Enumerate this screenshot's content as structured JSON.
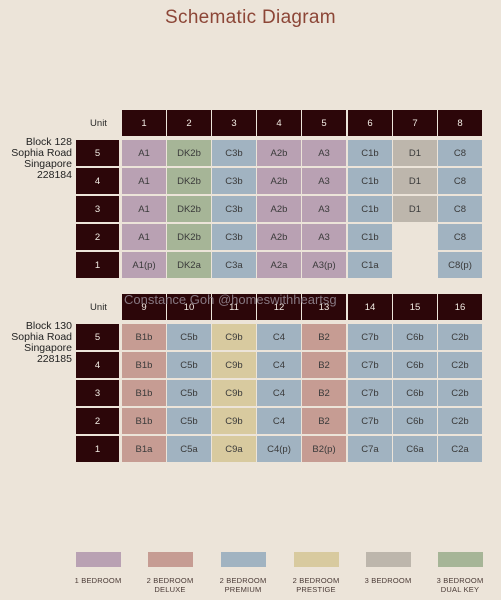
{
  "title": "Schematic Diagram",
  "watermark": "Constance Goh @homeswithheartsg",
  "colors": {
    "1 BEDROOM": "#b9a1b3",
    "2 BEDROOM DELUXE": "#c69c93",
    "2 BEDROOM PREMIUM": "#a1b3c1",
    "2 BEDROOM PRESTIGE": "#d8ca9f",
    "3 BEDROOM": "#bdb6ac",
    "3 BEDROOM DUAL KEY": "#a6b597"
  },
  "blocks": [
    {
      "name": "Block 128\nSophia Road\nSingapore\n228184",
      "unit_header": "Unit",
      "units": [
        "1",
        "2",
        "3",
        "4",
        "5",
        "6",
        "7",
        "8"
      ],
      "floors": [
        {
          "level": "5",
          "cells": [
            [
              "A1",
              "1 BEDROOM"
            ],
            [
              "DK2b",
              "3 BEDROOM DUAL KEY"
            ],
            [
              "C3b",
              "2 BEDROOM PREMIUM"
            ],
            [
              "A2b",
              "1 BEDROOM"
            ],
            [
              "A3",
              "1 BEDROOM"
            ],
            [
              "C1b",
              "2 BEDROOM PREMIUM"
            ],
            [
              "D1",
              "3 BEDROOM"
            ],
            [
              "C8",
              "2 BEDROOM PREMIUM"
            ]
          ]
        },
        {
          "level": "4",
          "cells": [
            [
              "A1",
              "1 BEDROOM"
            ],
            [
              "DK2b",
              "3 BEDROOM DUAL KEY"
            ],
            [
              "C3b",
              "2 BEDROOM PREMIUM"
            ],
            [
              "A2b",
              "1 BEDROOM"
            ],
            [
              "A3",
              "1 BEDROOM"
            ],
            [
              "C1b",
              "2 BEDROOM PREMIUM"
            ],
            [
              "D1",
              "3 BEDROOM"
            ],
            [
              "C8",
              "2 BEDROOM PREMIUM"
            ]
          ]
        },
        {
          "level": "3",
          "cells": [
            [
              "A1",
              "1 BEDROOM"
            ],
            [
              "DK2b",
              "3 BEDROOM DUAL KEY"
            ],
            [
              "C3b",
              "2 BEDROOM PREMIUM"
            ],
            [
              "A2b",
              "1 BEDROOM"
            ],
            [
              "A3",
              "1 BEDROOM"
            ],
            [
              "C1b",
              "2 BEDROOM PREMIUM"
            ],
            [
              "D1",
              "3 BEDROOM"
            ],
            [
              "C8",
              "2 BEDROOM PREMIUM"
            ]
          ]
        },
        {
          "level": "2",
          "cells": [
            [
              "A1",
              "1 BEDROOM"
            ],
            [
              "DK2b",
              "3 BEDROOM DUAL KEY"
            ],
            [
              "C3b",
              "2 BEDROOM PREMIUM"
            ],
            [
              "A2b",
              "1 BEDROOM"
            ],
            [
              "A3",
              "1 BEDROOM"
            ],
            [
              "C1b",
              "2 BEDROOM PREMIUM"
            ],
            null,
            [
              "C8",
              "2 BEDROOM PREMIUM"
            ]
          ]
        },
        {
          "level": "1",
          "cells": [
            [
              "A1(p)",
              "1 BEDROOM"
            ],
            [
              "DK2a",
              "3 BEDROOM DUAL KEY"
            ],
            [
              "C3a",
              "2 BEDROOM PREMIUM"
            ],
            [
              "A2a",
              "1 BEDROOM"
            ],
            [
              "A3(p)",
              "1 BEDROOM"
            ],
            [
              "C1a",
              "2 BEDROOM PREMIUM"
            ],
            null,
            [
              "C8(p)",
              "2 BEDROOM PREMIUM"
            ]
          ]
        }
      ]
    },
    {
      "name": "Block 130\nSophia Road\nSingapore\n228185",
      "unit_header": "Unit",
      "units": [
        "9",
        "10",
        "11",
        "12",
        "13",
        "14",
        "15",
        "16"
      ],
      "floors": [
        {
          "level": "5",
          "cells": [
            [
              "B1b",
              "2 BEDROOM DELUXE"
            ],
            [
              "C5b",
              "2 BEDROOM PREMIUM"
            ],
            [
              "C9b",
              "2 BEDROOM PRESTIGE"
            ],
            [
              "C4",
              "2 BEDROOM PREMIUM"
            ],
            [
              "B2",
              "2 BEDROOM DELUXE"
            ],
            [
              "C7b",
              "2 BEDROOM PREMIUM"
            ],
            [
              "C6b",
              "2 BEDROOM PREMIUM"
            ],
            [
              "C2b",
              "2 BEDROOM PREMIUM"
            ]
          ]
        },
        {
          "level": "4",
          "cells": [
            [
              "B1b",
              "2 BEDROOM DELUXE"
            ],
            [
              "C5b",
              "2 BEDROOM PREMIUM"
            ],
            [
              "C9b",
              "2 BEDROOM PRESTIGE"
            ],
            [
              "C4",
              "2 BEDROOM PREMIUM"
            ],
            [
              "B2",
              "2 BEDROOM DELUXE"
            ],
            [
              "C7b",
              "2 BEDROOM PREMIUM"
            ],
            [
              "C6b",
              "2 BEDROOM PREMIUM"
            ],
            [
              "C2b",
              "2 BEDROOM PREMIUM"
            ]
          ]
        },
        {
          "level": "3",
          "cells": [
            [
              "B1b",
              "2 BEDROOM DELUXE"
            ],
            [
              "C5b",
              "2 BEDROOM PREMIUM"
            ],
            [
              "C9b",
              "2 BEDROOM PRESTIGE"
            ],
            [
              "C4",
              "2 BEDROOM PREMIUM"
            ],
            [
              "B2",
              "2 BEDROOM DELUXE"
            ],
            [
              "C7b",
              "2 BEDROOM PREMIUM"
            ],
            [
              "C6b",
              "2 BEDROOM PREMIUM"
            ],
            [
              "C2b",
              "2 BEDROOM PREMIUM"
            ]
          ]
        },
        {
          "level": "2",
          "cells": [
            [
              "B1b",
              "2 BEDROOM DELUXE"
            ],
            [
              "C5b",
              "2 BEDROOM PREMIUM"
            ],
            [
              "C9b",
              "2 BEDROOM PRESTIGE"
            ],
            [
              "C4",
              "2 BEDROOM PREMIUM"
            ],
            [
              "B2",
              "2 BEDROOM DELUXE"
            ],
            [
              "C7b",
              "2 BEDROOM PREMIUM"
            ],
            [
              "C6b",
              "2 BEDROOM PREMIUM"
            ],
            [
              "C2b",
              "2 BEDROOM PREMIUM"
            ]
          ]
        },
        {
          "level": "1",
          "cells": [
            [
              "B1a",
              "2 BEDROOM DELUXE"
            ],
            [
              "C5a",
              "2 BEDROOM PREMIUM"
            ],
            [
              "C9a",
              "2 BEDROOM PRESTIGE"
            ],
            [
              "C4(p)",
              "2 BEDROOM PREMIUM"
            ],
            [
              "B2(p)",
              "2 BEDROOM DELUXE"
            ],
            [
              "C7a",
              "2 BEDROOM PREMIUM"
            ],
            [
              "C6a",
              "2 BEDROOM PREMIUM"
            ],
            [
              "C2a",
              "2 BEDROOM PREMIUM"
            ]
          ]
        }
      ]
    }
  ],
  "legend": [
    {
      "label": "1 BEDROOM",
      "color": "#b9a1b3"
    },
    {
      "label": "2 BEDROOM\nDELUXE",
      "color": "#c69c93"
    },
    {
      "label": "2 BEDROOM\nPREMIUM",
      "color": "#a1b3c1"
    },
    {
      "label": "2 BEDROOM\nPRESTIGE",
      "color": "#d8ca9f"
    },
    {
      "label": "3 BEDROOM",
      "color": "#bdb6ac"
    },
    {
      "label": "3 BEDROOM\nDUAL KEY",
      "color": "#a6b597"
    }
  ]
}
